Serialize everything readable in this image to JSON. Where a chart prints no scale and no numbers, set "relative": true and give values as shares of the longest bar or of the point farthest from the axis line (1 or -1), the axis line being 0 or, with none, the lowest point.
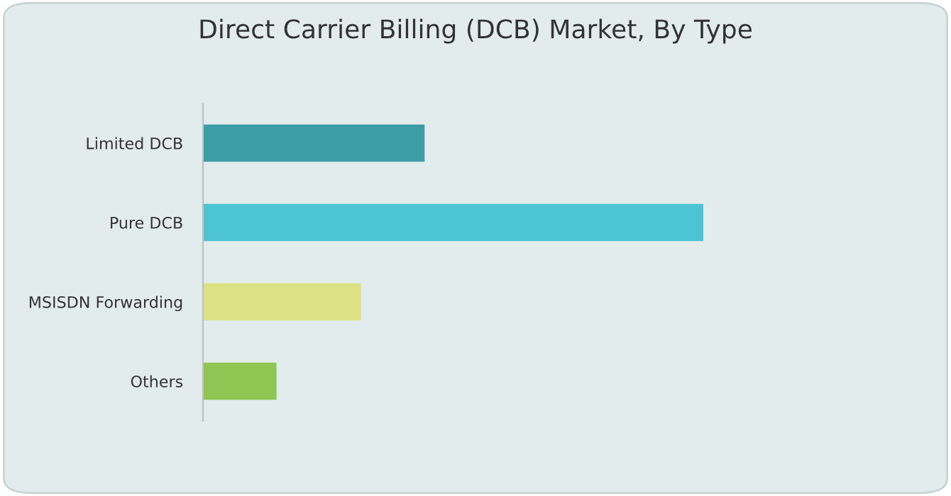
{
  "chart_data": {
    "type": "bar",
    "orientation": "horizontal",
    "relative": true,
    "title": "Direct Carrier Billing (DCB) Market, By Type",
    "categories": [
      "Limited DCB",
      "Pure DCB",
      "MSISDN Forwarding",
      "Others"
    ],
    "values": [
      0.443,
      1,
      0.316,
      0.147
    ],
    "colors": [
      "#3c9da6",
      "#4dc4d3",
      "#dce283",
      "#8fc552"
    ],
    "grid": false,
    "legend": false
  }
}
